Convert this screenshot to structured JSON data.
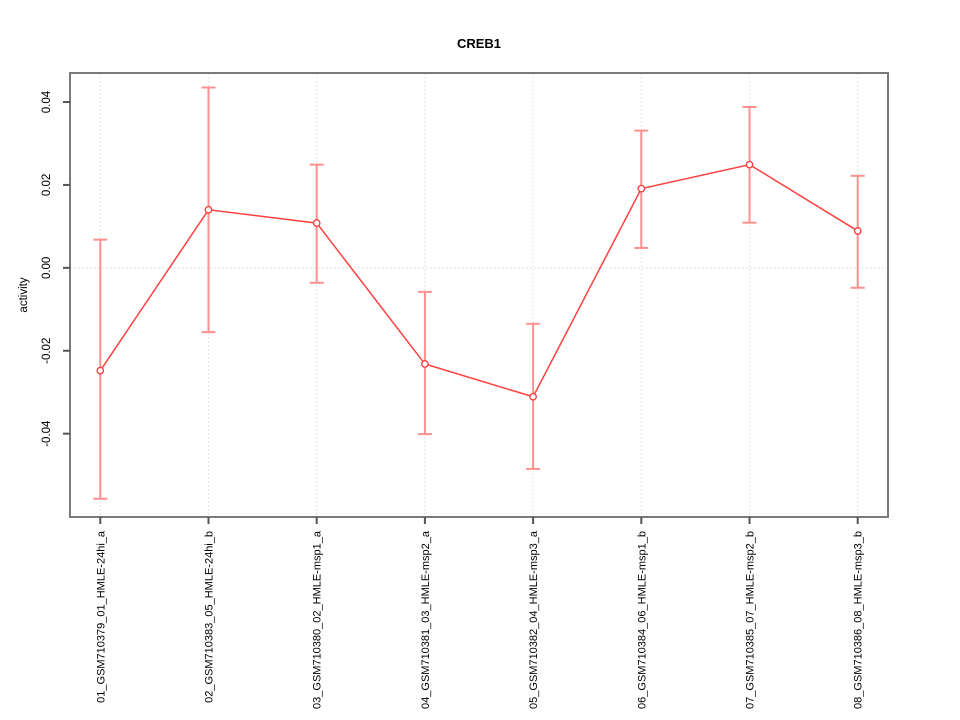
{
  "chart_data": {
    "type": "line",
    "title": "CREB1",
    "xlabel": "",
    "ylabel": "activity",
    "legend": false,
    "grid": "vertical dotted gridline at each category; horizontal dotted line at y=0",
    "point_style": "open-circle",
    "error_bars": true,
    "categories": [
      "01_GSM710379_01_HMLE-24hi_a",
      "02_GSM710383_05_HMLE-24hi_b",
      "03_GSM710380_02_HMLE-msp1_a",
      "04_GSM710381_03_HMLE-msp2_a",
      "05_GSM710382_04_HMLE-msp3_a",
      "06_GSM710384_06_HMLE-msp1_b",
      "07_GSM710385_07_HMLE-msp2_b",
      "08_GSM710386_08_HMLE-msp3_b"
    ],
    "series": [
      {
        "name": "activity",
        "values": [
          -0.0248,
          0.014,
          0.0108,
          -0.0232,
          -0.0311,
          0.0191,
          0.0249,
          0.0089
        ],
        "error_low": [
          -0.0557,
          -0.0155,
          -0.0036,
          -0.0401,
          -0.0485,
          0.0048,
          0.0109,
          -0.0048
        ],
        "error_high": [
          0.0068,
          0.0435,
          0.0249,
          -0.0058,
          -0.0135,
          0.0331,
          0.0388,
          0.0222
        ]
      }
    ],
    "ytick_values": [
      -0.04,
      -0.02,
      0.0,
      0.02,
      0.04
    ],
    "ytick_labels": [
      "-0.04",
      "-0.02",
      "0.00",
      "0.02",
      "0.04"
    ],
    "ylim": [
      -0.0601,
      0.047
    ],
    "xlim": [
      0.72,
      8.28
    ],
    "zero_line": 0,
    "colors": {
      "line": "#FF4040",
      "point_stroke": "#FF4040",
      "point_fill": "#FFFFFF",
      "error_bar": "#FF9090",
      "grid": "#DDDDDD",
      "box": "#7A7A7A",
      "tick": "#555555",
      "text": "#000000"
    }
  }
}
